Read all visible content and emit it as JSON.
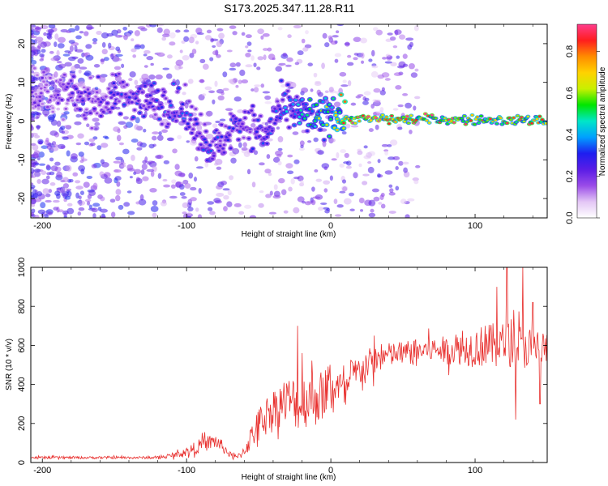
{
  "title": "S173.2025.347.11.28.R11",
  "chart_data": [
    {
      "type": "heatmap",
      "name": "spectrogram",
      "xlabel": "Height of straight line (km)",
      "ylabel": "Frequency (Hz)",
      "xlim": [
        -208,
        150
      ],
      "ylim": [
        -25,
        25
      ],
      "xticks": [
        -200,
        -100,
        0,
        100
      ],
      "xtick_labels": [
        "-200",
        "-100",
        "0",
        "100"
      ],
      "yticks": [
        20,
        10,
        0,
        -10,
        -20
      ],
      "ytick_labels": [
        "20",
        "10",
        "0",
        "-10",
        "-20"
      ],
      "colorbar": {
        "label": "Normalized spectral amplitude",
        "range": [
          0.0,
          0.93
        ],
        "ticks": [
          0.0,
          0.2,
          0.4,
          0.6,
          0.8
        ],
        "tick_labels": [
          "0.0",
          "0.2",
          "0.4",
          "0.6",
          "0.8"
        ],
        "colors": [
          "#ffffff",
          "#e3c6f5",
          "#9a4ce8",
          "#5a1de6",
          "#1e1ef0",
          "#00a0ff",
          "#00e6c8",
          "#00e600",
          "#c8f000",
          "#ffd200",
          "#ff8c00",
          "#ff1e1e",
          "#ff3c8c"
        ]
      },
      "ridge": {
        "description_free": true,
        "x": [
          -205,
          -190,
          -175,
          -160,
          -145,
          -135,
          -125,
          -115,
          -105,
          -95,
          -85,
          -78,
          -70,
          -60,
          -52,
          -45,
          -38,
          -30,
          -22,
          -15,
          -8,
          0,
          8,
          20,
          40,
          60,
          80,
          100,
          120,
          150
        ],
        "freq": [
          8,
          7,
          6,
          5,
          7,
          6,
          5,
          5,
          3,
          0,
          -6,
          -7,
          -2,
          0,
          -2,
          -4,
          2,
          3,
          2,
          1,
          0,
          3,
          1,
          0.5,
          0.5,
          0.5,
          0.4,
          0.3,
          0.2,
          0.2
        ],
        "amplitude": [
          0.2,
          0.2,
          0.25,
          0.25,
          0.3,
          0.3,
          0.3,
          0.35,
          0.35,
          0.3,
          0.35,
          0.3,
          0.3,
          0.3,
          0.3,
          0.3,
          0.35,
          0.4,
          0.45,
          0.5,
          0.55,
          0.6,
          0.75,
          0.9,
          0.9,
          0.85,
          0.85,
          0.85,
          0.8,
          0.8
        ]
      }
    },
    {
      "type": "line",
      "name": "snr",
      "xlabel": "Height of straight line (km)",
      "ylabel": "SNR (10 * v/v)",
      "xlim": [
        -208,
        150
      ],
      "ylim": [
        0,
        1000
      ],
      "xticks": [
        -200,
        -100,
        0,
        100
      ],
      "xtick_labels": [
        "-200",
        "-100",
        "0",
        "100"
      ],
      "yticks": [
        0,
        200,
        400,
        600,
        800,
        1000
      ],
      "ytick_labels": [
        "0",
        "200",
        "400",
        "600",
        "800",
        "1000"
      ],
      "color": "#e8302e",
      "series": [
        {
          "name": "SNR",
          "x": [
            -208,
            -200,
            -190,
            -180,
            -170,
            -160,
            -150,
            -140,
            -130,
            -120,
            -115,
            -110,
            -105,
            -100,
            -95,
            -90,
            -85,
            -80,
            -75,
            -70,
            -65,
            -60,
            -55,
            -50,
            -45,
            -40,
            -35,
            -30,
            -25,
            -20,
            -15,
            -10,
            -5,
            0,
            5,
            10,
            15,
            20,
            25,
            30,
            35,
            40,
            50,
            60,
            70,
            80,
            90,
            100,
            110,
            120,
            130,
            140,
            150
          ],
          "values": [
            25,
            25,
            25,
            25,
            25,
            25,
            25,
            25,
            25,
            25,
            30,
            35,
            45,
            55,
            70,
            90,
            100,
            110,
            80,
            40,
            25,
            60,
            130,
            200,
            250,
            280,
            300,
            320,
            310,
            300,
            340,
            330,
            350,
            380,
            400,
            350,
            440,
            470,
            500,
            520,
            540,
            550,
            560,
            570,
            580,
            575,
            580,
            590,
            600,
            600,
            600,
            590,
            580
          ],
          "noise": [
            8,
            8,
            8,
            8,
            8,
            8,
            8,
            8,
            8,
            8,
            10,
            15,
            20,
            30,
            40,
            45,
            50,
            50,
            40,
            20,
            15,
            40,
            80,
            100,
            110,
            120,
            150,
            150,
            170,
            180,
            180,
            180,
            150,
            120,
            120,
            110,
            110,
            100,
            100,
            100,
            90,
            80,
            80,
            80,
            80,
            90,
            100,
            130,
            140,
            150,
            150,
            140,
            130
          ],
          "peaks": [
            [
              -23,
              700
            ],
            [
              -20,
              560
            ],
            [
              30,
              650
            ],
            [
              107,
              700
            ],
            [
              115,
              900
            ],
            [
              122,
              1000
            ],
            [
              133,
              1000
            ],
            [
              140,
              820
            ],
            [
              128,
              220
            ],
            [
              145,
              300
            ]
          ]
        }
      ]
    }
  ]
}
